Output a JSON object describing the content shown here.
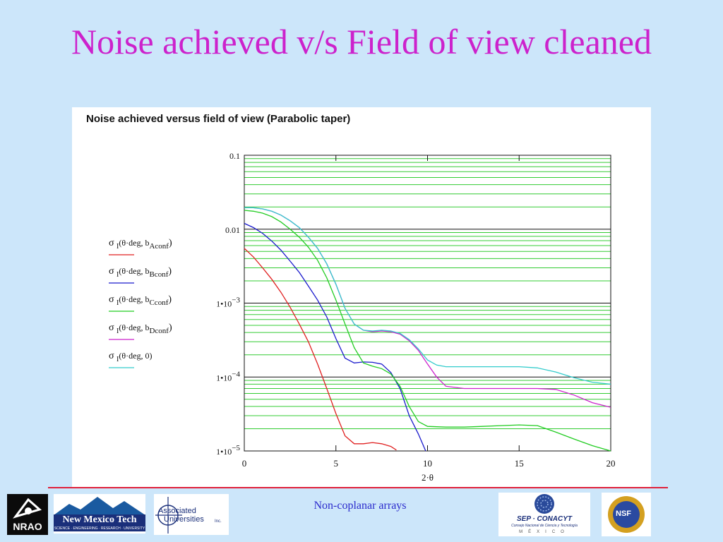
{
  "slide": {
    "title": "Noise achieved v/s Field of view cleaned",
    "footer": "Non-coplanar arrays"
  },
  "logos": {
    "nrao": "NRAO",
    "nmt_name": "New Mexico Tech",
    "nmt_tagline": "SCIENCE · ENGINEERING · RESEARCH · UNIVERSITY",
    "au_line1": "Associated",
    "au_line2": "Universities",
    "au_suffix": "Inc.",
    "conacyt": "SEP · CONACYT",
    "conacyt_sub": "Consejo Nacional de Ciencia y Tecnología",
    "mexico": "MÉXICO",
    "nsf": "NSF"
  },
  "chart_data": {
    "type": "line",
    "title": "Noise achieved versus field of view (Parabolic taper)",
    "xlabel": "2·θ",
    "ylabel": "",
    "xlim": [
      0,
      20
    ],
    "ylim": [
      1e-05,
      0.1
    ],
    "y_scale": "log",
    "grid": true,
    "legend_position": "left",
    "x_ticks": [
      "0",
      "5",
      "10",
      "15",
      "20"
    ],
    "y_tick_labels": [
      {
        "value": 0.1,
        "mant": "0.1",
        "exp": ""
      },
      {
        "value": 0.01,
        "mant": "0.01",
        "exp": ""
      },
      {
        "value": 0.001,
        "mant": "1•10",
        "exp": "−3"
      },
      {
        "value": 0.0001,
        "mant": "1•10",
        "exp": "−4"
      },
      {
        "value": 1e-05,
        "mant": "1•10",
        "exp": "−5"
      }
    ],
    "colors": {
      "grid_minor": "#33cc33",
      "grid_major": "#111111",
      "axis": "#111111"
    },
    "series": [
      {
        "name": "σ I(θ·deg, bAconf)",
        "legend": {
          "fn": "σ",
          "sub": "I",
          "args": "(θ·deg, b",
          "arg_sub": "Aconf",
          "close": ")"
        },
        "color": "#e02020",
        "x": [
          0,
          0.5,
          1,
          1.5,
          2,
          2.5,
          3,
          3.5,
          4,
          4.5,
          5,
          5.5,
          6,
          6.5,
          7,
          7.5,
          8,
          8.3
        ],
        "y": [
          0.0055,
          0.0042,
          0.003,
          0.0021,
          0.0014,
          0.00088,
          0.00052,
          0.0003,
          0.00015,
          7e-05,
          3.2e-05,
          1.6e-05,
          1.25e-05,
          1.25e-05,
          1.3e-05,
          1.25e-05,
          1.15e-05,
          1.03e-05
        ]
      },
      {
        "name": "σ I(θ·deg, bBconf)",
        "legend": {
          "fn": "σ",
          "sub": "I",
          "args": "(θ·deg, b",
          "arg_sub": "Bconf",
          "close": ")"
        },
        "color": "#1a1acc",
        "x": [
          0,
          0.5,
          1,
          1.5,
          2,
          2.5,
          3,
          3.5,
          4,
          4.5,
          5,
          5.5,
          6,
          6.5,
          7,
          7.5,
          8,
          8.5,
          9,
          9.5,
          9.9
        ],
        "y": [
          0.012,
          0.0105,
          0.0088,
          0.0069,
          0.0052,
          0.0037,
          0.0026,
          0.0017,
          0.0011,
          0.00065,
          0.00033,
          0.00018,
          0.000155,
          0.00016,
          0.000158,
          0.00015,
          0.000115,
          7e-05,
          3e-05,
          1.7e-05,
          1e-05
        ]
      },
      {
        "name": "σ I(θ·deg, bCconf)",
        "legend": {
          "fn": "σ",
          "sub": "I",
          "args": "(θ·deg, b",
          "arg_sub": "Cconf",
          "close": ")"
        },
        "color": "#22cc22",
        "x": [
          0,
          0.5,
          1,
          1.5,
          2,
          2.5,
          3,
          3.5,
          4,
          4.5,
          5,
          5.5,
          6,
          6.5,
          7,
          7.5,
          8,
          8.5,
          9,
          9.5,
          10,
          11,
          12,
          13,
          14,
          15,
          16,
          17,
          18,
          19,
          20
        ],
        "y": [
          0.018,
          0.0175,
          0.0165,
          0.0148,
          0.0125,
          0.01,
          0.0078,
          0.0057,
          0.0038,
          0.0022,
          0.0011,
          0.00052,
          0.00025,
          0.000155,
          0.00014,
          0.00013,
          0.00011,
          7.5e-05,
          4e-05,
          2.5e-05,
          2.15e-05,
          2.1e-05,
          2.1e-05,
          2.15e-05,
          2.2e-05,
          2.25e-05,
          2.2e-05,
          1.8e-05,
          1.45e-05,
          1.18e-05,
          1e-05
        ]
      },
      {
        "name": "σ I(θ·deg, bDconf)",
        "legend": {
          "fn": "σ",
          "sub": "I",
          "args": "(θ·deg, b",
          "arg_sub": "Dconf",
          "close": ")"
        },
        "color": "#cc22cc",
        "x": [
          0,
          0.5,
          1,
          1.5,
          2,
          2.5,
          3,
          3.5,
          4,
          4.5,
          5,
          5.5,
          6,
          6.5,
          7,
          7.5,
          8,
          8.5,
          9,
          9.5,
          10,
          10.5,
          11,
          12,
          13,
          14,
          15,
          16,
          17,
          18,
          19,
          20
        ],
        "y": [
          0.0195,
          0.0195,
          0.0188,
          0.0175,
          0.0155,
          0.013,
          0.0105,
          0.0078,
          0.0055,
          0.0034,
          0.0018,
          0.00085,
          0.00052,
          0.00043,
          0.00041,
          0.00042,
          0.00041,
          0.00038,
          0.00031,
          0.00023,
          0.00015,
          0.0001,
          7.5e-05,
          7e-05,
          7e-05,
          7e-05,
          7e-05,
          7e-05,
          6.8e-05,
          5.7e-05,
          4.5e-05,
          3.9e-05
        ]
      },
      {
        "name": "σ I(θ·deg, 0)",
        "legend": {
          "fn": "σ",
          "sub": "I",
          "args": "(θ·deg, 0)",
          "arg_sub": "",
          "close": ""
        },
        "color": "#33cccc",
        "x": [
          0,
          0.5,
          1,
          1.5,
          2,
          2.5,
          3,
          3.5,
          4,
          4.5,
          5,
          5.5,
          6,
          6.5,
          7,
          7.5,
          8,
          8.5,
          9,
          9.5,
          10,
          10.5,
          11,
          12,
          13,
          14,
          15,
          16,
          17,
          18,
          19,
          20
        ],
        "y": [
          0.0195,
          0.0195,
          0.0188,
          0.0175,
          0.0155,
          0.013,
          0.0105,
          0.0078,
          0.0055,
          0.0034,
          0.0018,
          0.00085,
          0.00052,
          0.00043,
          0.00042,
          0.00043,
          0.00042,
          0.00039,
          0.00032,
          0.00024,
          0.00017,
          0.000145,
          0.000138,
          0.000138,
          0.000138,
          0.000138,
          0.000138,
          0.000133,
          0.000117,
          9.8e-05,
          8.5e-05,
          8e-05
        ]
      }
    ]
  }
}
